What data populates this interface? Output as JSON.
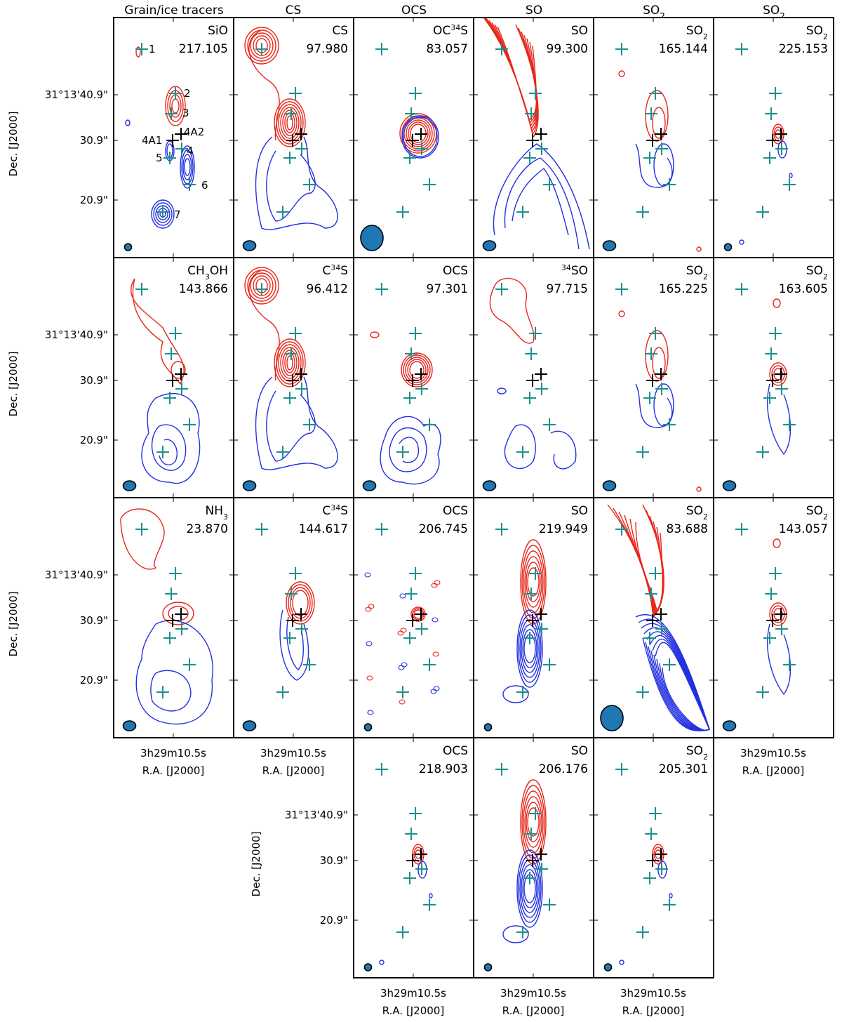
{
  "colors": {
    "red_contour": "#e8261a",
    "blue_contour": "#2230e0",
    "marker": "#1f8f8f",
    "source": "#000000",
    "beam": "#1f77b4"
  },
  "column_titles": [
    "Grain/ice tracers",
    "CS",
    "OCS",
    "SO",
    "SO₂",
    "SO₂"
  ],
  "axis": {
    "y_ticks": [
      {
        "label": "31°13'40.9\""
      },
      {
        "label": "30.9\""
      },
      {
        "label": "20.9\""
      }
    ],
    "y_label": "Dec. [J2000]",
    "x_tick": "3h29m10.5s",
    "x_label": "R.A. [J2000]"
  },
  "annotations": {
    "markers": [
      "1",
      "2",
      "3",
      "4A1",
      "4A2",
      "4",
      "5",
      "6",
      "7"
    ]
  },
  "panels": [
    {
      "id": "p00",
      "row": 0,
      "col": 0,
      "mol_html": "SiO",
      "mol": "SiO",
      "freq": "217.105",
      "beam": "sm",
      "style": "sio"
    },
    {
      "id": "p01",
      "row": 0,
      "col": 1,
      "mol_html": "CS",
      "mol": "CS",
      "freq": "97.980",
      "beam": "md",
      "style": "cs"
    },
    {
      "id": "p02",
      "row": 0,
      "col": 2,
      "mol_html": "OC<tspan baseline-shift=\"super\" font-size=\"11\">34</tspan>S",
      "mol": "OC34S",
      "freq": "83.057",
      "beam": "lg",
      "style": "compact"
    },
    {
      "id": "p03",
      "row": 0,
      "col": 3,
      "mol_html": "SO",
      "mol": "SO",
      "freq": "99.300",
      "beam": "md",
      "style": "jet"
    },
    {
      "id": "p04",
      "row": 0,
      "col": 4,
      "mol_html": "SO<tspan baseline-shift=\"sub\" font-size=\"11\">2</tspan>",
      "mol": "SO2",
      "freq": "165.144",
      "beam": "md",
      "style": "patchy"
    },
    {
      "id": "p05",
      "row": 0,
      "col": 5,
      "mol_html": "SO<tspan baseline-shift=\"sub\" font-size=\"11\">2</tspan>",
      "mol": "SO2",
      "freq": "225.153",
      "beam": "sm",
      "style": "tiny"
    },
    {
      "id": "p10",
      "row": 1,
      "col": 0,
      "mol_html": "CH<tspan baseline-shift=\"sub\" font-size=\"11\">3</tspan>OH",
      "mol": "CH3OH",
      "freq": "143.866",
      "beam": "md",
      "style": "meth"
    },
    {
      "id": "p11",
      "row": 1,
      "col": 1,
      "mol_html": "C<tspan baseline-shift=\"super\" font-size=\"11\">34</tspan>S",
      "mol": "C34S",
      "freq": "96.412",
      "beam": "md",
      "style": "cs"
    },
    {
      "id": "p12",
      "row": 1,
      "col": 2,
      "mol_html": "OCS",
      "mol": "OCS",
      "freq": "97.301",
      "beam": "md",
      "style": "compactblue"
    },
    {
      "id": "p13",
      "row": 1,
      "col": 3,
      "mol_html": "<tspan baseline-shift=\"super\" font-size=\"11\">34</tspan>SO",
      "mol": "34SO",
      "freq": "97.715",
      "beam": "md",
      "style": "sparse"
    },
    {
      "id": "p14",
      "row": 1,
      "col": 4,
      "mol_html": "SO<tspan baseline-shift=\"sub\" font-size=\"11\">2</tspan>",
      "mol": "SO2",
      "freq": "165.225",
      "beam": "md",
      "style": "patchy"
    },
    {
      "id": "p15",
      "row": 1,
      "col": 5,
      "mol_html": "SO<tspan baseline-shift=\"sub\" font-size=\"11\">2</tspan>",
      "mol": "SO2",
      "freq": "163.605",
      "beam": "md",
      "style": "small"
    },
    {
      "id": "p20",
      "row": 2,
      "col": 0,
      "mol_html": "NH<tspan baseline-shift=\"sub\" font-size=\"11\">3</tspan>",
      "mol": "NH3",
      "freq": "23.870",
      "beam": "md",
      "style": "nh3"
    },
    {
      "id": "p21",
      "row": 2,
      "col": 1,
      "mol_html": "C<tspan baseline-shift=\"super\" font-size=\"11\">34</tspan>S",
      "mol": "C34S",
      "freq": "144.617",
      "beam": "md",
      "style": "mid"
    },
    {
      "id": "p22",
      "row": 2,
      "col": 2,
      "mol_html": "OCS",
      "mol": "OCS",
      "freq": "206.745",
      "beam": "sm",
      "style": "noisy"
    },
    {
      "id": "p23",
      "row": 2,
      "col": 3,
      "mol_html": "SO",
      "mol": "SO",
      "freq": "219.949",
      "beam": "sm",
      "style": "dense"
    },
    {
      "id": "p24",
      "row": 2,
      "col": 4,
      "mol_html": "SO<tspan baseline-shift=\"sub\" font-size=\"11\">2</tspan>",
      "mol": "SO2",
      "freq": "83.688",
      "beam": "lg",
      "style": "big"
    },
    {
      "id": "p25",
      "row": 2,
      "col": 5,
      "mol_html": "SO<tspan baseline-shift=\"sub\" font-size=\"11\">2</tspan>",
      "mol": "SO2",
      "freq": "143.057",
      "beam": "md",
      "style": "small"
    },
    {
      "id": "p32",
      "row": 3,
      "col": 2,
      "mol_html": "OCS",
      "mol": "OCS",
      "freq": "218.903",
      "beam": "sm",
      "style": "tiny"
    },
    {
      "id": "p33",
      "row": 3,
      "col": 3,
      "mol_html": "SO",
      "mol": "SO",
      "freq": "206.176",
      "beam": "sm",
      "style": "dense"
    },
    {
      "id": "p34",
      "row": 3,
      "col": 4,
      "mol_html": "SO<tspan baseline-shift=\"sub\" font-size=\"11\">2</tspan>",
      "mol": "SO2",
      "freq": "205.301",
      "beam": "sm",
      "style": "tiny"
    }
  ]
}
